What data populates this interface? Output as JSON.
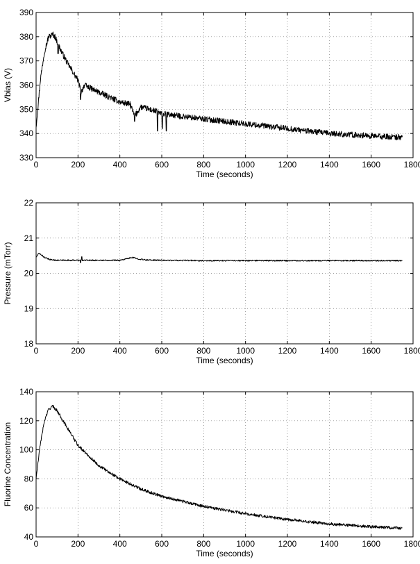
{
  "chart_data": [
    {
      "type": "line",
      "xlabel": "Time (seconds)",
      "ylabel": "Vbias (V)",
      "xlim": [
        0,
        1800
      ],
      "ylim": [
        330,
        390
      ],
      "xticks": [
        0,
        200,
        400,
        600,
        800,
        1000,
        1200,
        1400,
        1600,
        1800
      ],
      "yticks": [
        330,
        340,
        350,
        360,
        370,
        380,
        390
      ],
      "grid": true,
      "series": [
        {
          "x": [
            0,
            10,
            20,
            40,
            60,
            80,
            90,
            100,
            120,
            150,
            200,
            215,
            230,
            300,
            400,
            450,
            470,
            500,
            580,
            600,
            620,
            700,
            800,
            900,
            1000,
            1100,
            1200,
            1300,
            1400,
            1500,
            1600,
            1700,
            1750
          ],
          "y": [
            343,
            352,
            362,
            374,
            380,
            381,
            380,
            378,
            374,
            369,
            362,
            357,
            360,
            357,
            353,
            352,
            347,
            351,
            349,
            348,
            348,
            347,
            346,
            345,
            344,
            343,
            342,
            341,
            340,
            339.5,
            339,
            338.5,
            338.5
          ],
          "noise": 1.2,
          "spikes": [
            [
              105,
              373
            ],
            [
              212,
              354
            ],
            [
              470,
              345
            ],
            [
              580,
              341
            ],
            [
              602,
              342
            ],
            [
              622,
              341
            ]
          ]
        }
      ]
    },
    {
      "type": "line",
      "xlabel": "Time (seconds)",
      "ylabel": "Pressure (mTorr)",
      "xlim": [
        0,
        1800
      ],
      "ylim": [
        18,
        22
      ],
      "xticks": [
        0,
        200,
        400,
        600,
        800,
        1000,
        1200,
        1400,
        1600,
        1800
      ],
      "yticks": [
        18,
        19,
        20,
        21,
        22
      ],
      "grid": true,
      "series": [
        {
          "x": [
            0,
            10,
            20,
            40,
            60,
            80,
            100,
            150,
            200,
            300,
            400,
            440,
            460,
            480,
            520,
            600,
            800,
            1000,
            1200,
            1400,
            1600,
            1750
          ],
          "y": [
            20.45,
            20.55,
            20.55,
            20.45,
            20.4,
            20.38,
            20.37,
            20.37,
            20.37,
            20.37,
            20.37,
            20.42,
            20.45,
            20.42,
            20.38,
            20.37,
            20.36,
            20.36,
            20.36,
            20.36,
            20.36,
            20.36
          ],
          "noise": 0.018,
          "spikes": [
            [
              212,
              20.3
            ],
            [
              218,
              20.47
            ]
          ]
        }
      ]
    },
    {
      "type": "line",
      "xlabel": "Time (seconds)",
      "ylabel": "Fluorine Concentration",
      "xlim": [
        0,
        1800
      ],
      "ylim": [
        40,
        140
      ],
      "xticks": [
        0,
        200,
        400,
        600,
        800,
        1000,
        1200,
        1400,
        1600,
        1800
      ],
      "yticks": [
        40,
        60,
        80,
        100,
        120,
        140
      ],
      "grid": true,
      "series": [
        {
          "x": [
            0,
            10,
            20,
            40,
            60,
            80,
            100,
            150,
            200,
            300,
            400,
            500,
            600,
            800,
            1000,
            1200,
            1400,
            1600,
            1750
          ],
          "y": [
            80,
            92,
            104,
            120,
            128,
            130,
            127,
            115,
            103,
            89,
            80,
            73,
            68,
            61,
            56,
            52,
            49,
            47,
            46
          ],
          "noise": 1.0,
          "spikes": []
        }
      ]
    }
  ]
}
